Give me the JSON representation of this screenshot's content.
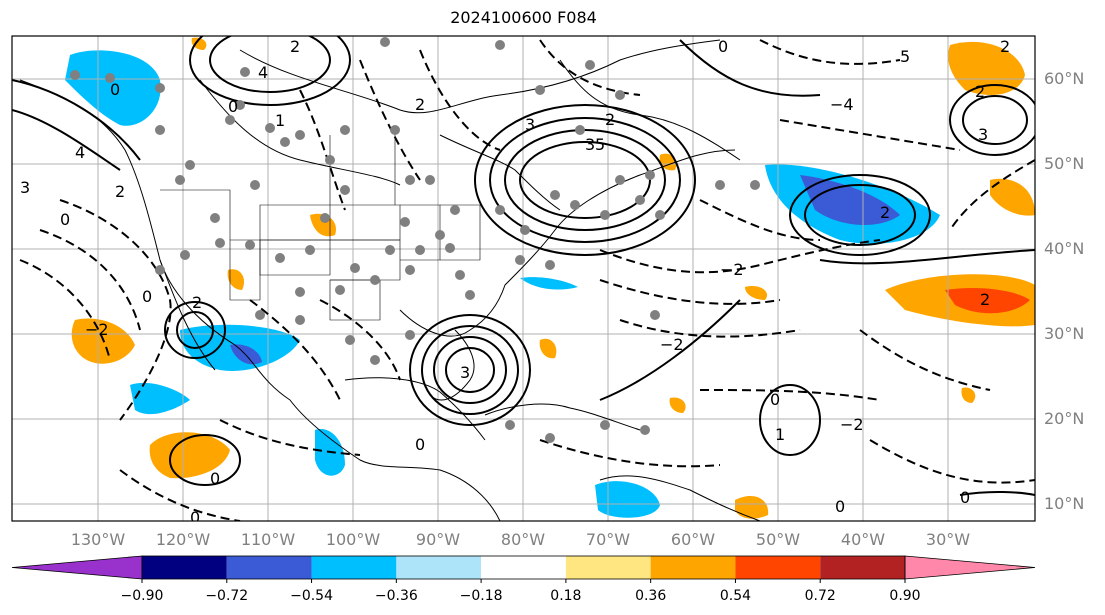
{
  "title": "2024100600 F084",
  "longitude_labels": [
    "130°W",
    "120°W",
    "110°W",
    "100°W",
    "90°W",
    "80°W",
    "70°W",
    "60°W",
    "50°W",
    "40°W",
    "30°W"
  ],
  "latitude_labels": [
    "60°N",
    "50°N",
    "40°N",
    "30°N",
    "20°N",
    "10°N"
  ],
  "colorbar": {
    "tick_labels": [
      "−0.90",
      "−0.72",
      "−0.54",
      "−0.36",
      "−0.18",
      "0.18",
      "0.36",
      "0.54",
      "0.72",
      "0.90"
    ],
    "colors": [
      "#9932cc",
      "#000080",
      "#3b5bd6",
      "#00bfff",
      "#aee4fa",
      "#ffffff",
      "#ffe680",
      "#ffa500",
      "#ff4500",
      "#b22222",
      "#ff88aa"
    ]
  },
  "contour_labels": [
    "0",
    "2",
    "4",
    "−2",
    "3",
    "5",
    "1",
    "−4"
  ],
  "colors": {
    "positive_fill": "#ffa500",
    "positive_strong": "#ff4500",
    "negative_fill": "#00bfff",
    "negative_strong": "#3b5bd6",
    "station_dots": "#808080",
    "grid": "#b0b0b0"
  }
}
